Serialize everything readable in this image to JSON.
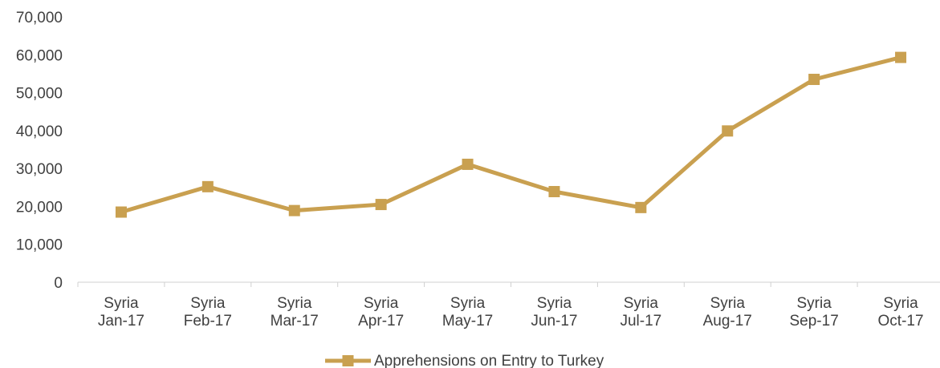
{
  "chart_data": {
    "type": "line",
    "title": "",
    "xlabel": "",
    "ylabel": "",
    "ylim": [
      0,
      70000
    ],
    "yticks": [
      "0",
      "10,000",
      "20,000",
      "30,000",
      "40,000",
      "50,000",
      "60,000",
      "70,000"
    ],
    "ytick_values": [
      0,
      10000,
      20000,
      30000,
      40000,
      50000,
      60000,
      70000
    ],
    "categories": [
      [
        "Syria",
        "Jan-17"
      ],
      [
        "Syria",
        "Feb-17"
      ],
      [
        "Syria",
        "Mar-17"
      ],
      [
        "Syria",
        "Apr-17"
      ],
      [
        "Syria",
        "May-17"
      ],
      [
        "Syria",
        "Jun-17"
      ],
      [
        "Syria",
        "Jul-17"
      ],
      [
        "Syria",
        "Aug-17"
      ],
      [
        "Syria",
        "Sep-17"
      ],
      [
        "Syria",
        "Oct-17"
      ]
    ],
    "series": [
      {
        "name": "Apprehensions on Entry to Turkey",
        "color": "#C9A050",
        "marker": "square",
        "values": [
          18500,
          25200,
          18900,
          20500,
          31100,
          23900,
          19700,
          39900,
          53500,
          59300
        ]
      }
    ],
    "grid": false,
    "legend": "bottom-center"
  }
}
